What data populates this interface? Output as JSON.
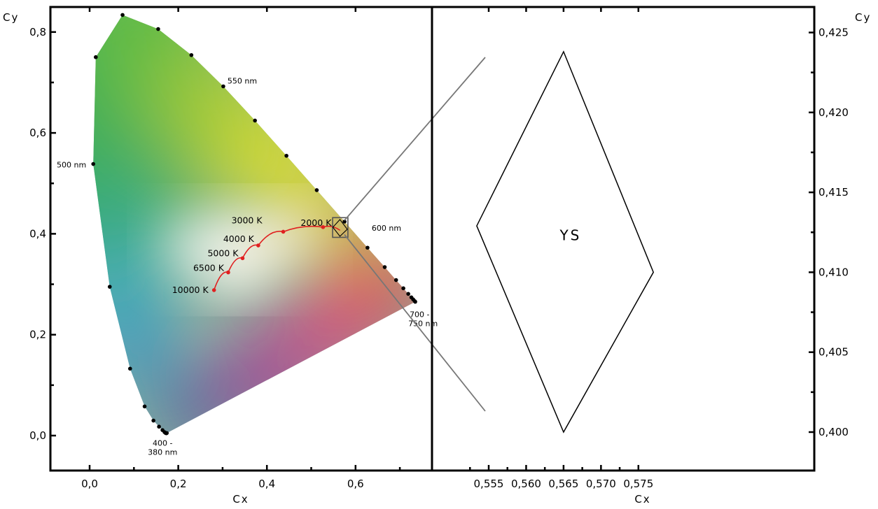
{
  "chart_data": [
    {
      "type": "scatter",
      "subtype": "CIE 1931 chromaticity diagram",
      "xlabel": "Cx",
      "ylabel": "Cy",
      "xlim": [
        -0.1,
        0.8
      ],
      "ylim": [
        -0.07,
        0.85
      ],
      "x_ticks": [
        "0,0",
        "0,2",
        "0,4",
        "0,6"
      ],
      "y_ticks": [
        "0,0",
        "0,2",
        "0,4",
        "0,6",
        "0,8"
      ],
      "grid": false,
      "spectral_locus_points": [
        {
          "x": 0.1741,
          "y": 0.005
        },
        {
          "x": 0.1733,
          "y": 0.0048
        },
        {
          "x": 0.1726,
          "y": 0.0048
        },
        {
          "x": 0.1714,
          "y": 0.0051
        },
        {
          "x": 0.1689,
          "y": 0.0069
        },
        {
          "x": 0.1644,
          "y": 0.0109
        },
        {
          "x": 0.1566,
          "y": 0.0177
        },
        {
          "x": 0.144,
          "y": 0.0297
        },
        {
          "x": 0.1241,
          "y": 0.0578
        },
        {
          "x": 0.0913,
          "y": 0.1327
        },
        {
          "x": 0.0454,
          "y": 0.295
        },
        {
          "x": 0.0082,
          "y": 0.5384
        },
        {
          "x": 0.0139,
          "y": 0.7502
        },
        {
          "x": 0.0743,
          "y": 0.8338
        },
        {
          "x": 0.1547,
          "y": 0.8059
        },
        {
          "x": 0.2296,
          "y": 0.7543
        },
        {
          "x": 0.3016,
          "y": 0.6923
        },
        {
          "x": 0.3731,
          "y": 0.6245
        },
        {
          "x": 0.4441,
          "y": 0.5547
        },
        {
          "x": 0.5125,
          "y": 0.4866
        },
        {
          "x": 0.5752,
          "y": 0.4242
        },
        {
          "x": 0.627,
          "y": 0.3725
        },
        {
          "x": 0.6658,
          "y": 0.334
        },
        {
          "x": 0.6915,
          "y": 0.3083
        },
        {
          "x": 0.7079,
          "y": 0.292
        },
        {
          "x": 0.719,
          "y": 0.2809
        },
        {
          "x": 0.726,
          "y": 0.274
        },
        {
          "x": 0.73,
          "y": 0.27
        },
        {
          "x": 0.7334,
          "y": 0.2666
        },
        {
          "x": 0.7347,
          "y": 0.2653
        }
      ],
      "wavelength_labels": [
        {
          "text": "400 -\n380 nm",
          "x": 0.1741,
          "y": 0.005
        },
        {
          "text": "500 nm",
          "x": 0.0082,
          "y": 0.5384
        },
        {
          "text": "550 nm",
          "x": 0.3016,
          "y": 0.6923
        },
        {
          "text": "600 nm",
          "x": 0.627,
          "y": 0.3725
        },
        {
          "text": "700 -\n750 nm",
          "x": 0.7347,
          "y": 0.2653
        }
      ],
      "planckian_locus": {
        "color": "#e02020",
        "points": [
          {
            "label": "10000 K",
            "x": 0.2807,
            "y": 0.2884
          },
          {
            "label": "6500 K",
            "x": 0.3127,
            "y": 0.3235
          },
          {
            "label": "5000 K",
            "x": 0.3451,
            "y": 0.3516
          },
          {
            "label": "4000 K",
            "x": 0.3805,
            "y": 0.3769
          },
          {
            "label": "3000 K",
            "x": 0.4369,
            "y": 0.4041
          },
          {
            "label": "2000 K",
            "x": 0.5267,
            "y": 0.4133
          },
          {
            "label": "",
            "x": 0.565,
            "y": 0.407
          }
        ]
      },
      "zoom_box": {
        "x": [
          0.553,
          0.578
        ],
        "y": [
          0.3985,
          0.4265
        ]
      }
    },
    {
      "type": "line",
      "subtype": "zoomed chromaticity region",
      "xlabel": "Cx",
      "ylabel": "Cy",
      "xlim": [
        0.5508,
        0.5769
      ],
      "ylim": [
        0.398,
        0.4261
      ],
      "x_ticks": [
        "0,555",
        "0,560",
        "0,565",
        "0,570",
        "0,575"
      ],
      "y_ticks": [
        "0,400",
        "0,405",
        "0,410",
        "0,415",
        "0,420",
        "0,425"
      ],
      "y_axis_side": "right",
      "grid": false,
      "series": [
        {
          "name": "YS",
          "closed": true,
          "points": [
            {
              "x": 0.565,
              "y": 0.4238
            },
            {
              "x": 0.577,
              "y": 0.41
            },
            {
              "x": 0.565,
              "y": 0.4
            },
            {
              "x": 0.5534,
              "y": 0.4129
            }
          ]
        }
      ]
    }
  ]
}
